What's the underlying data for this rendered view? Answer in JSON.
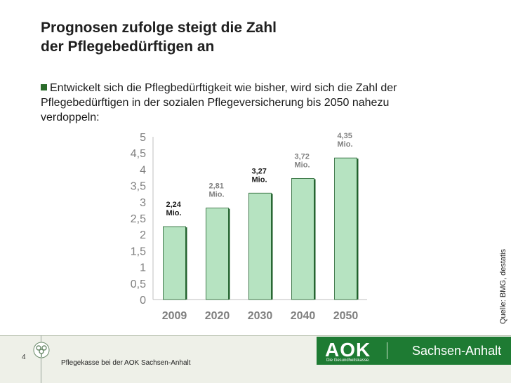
{
  "slide": {
    "title_line1": "Prognosen zufolge steigt die Zahl",
    "title_line2": "der Pflegebedürftigen an",
    "bullet": "Entwickelt sich die Pflegbedürftigkeit wie bisher, wird sich die Zahl der Pflegebedürftigen in der sozialen Pflegeversicherung bis 2050 nahezu verdoppeln:",
    "source": "Quelle: BMG, destatis",
    "page_number": "4",
    "footer_text": "Pflegekasse bei der AOK Sachsen-Anhalt"
  },
  "logo": {
    "letters": "AOK",
    "tagline": "Die Gesundheitskasse.",
    "region": "Sachsen-Anhalt",
    "color": "#1e7b33"
  },
  "chart_data": {
    "type": "bar",
    "categories": [
      "2009",
      "2020",
      "2030",
      "2040",
      "2050"
    ],
    "values": [
      2.24,
      2.81,
      3.27,
      3.72,
      4.35
    ],
    "data_labels": [
      [
        "2,24",
        "Mio."
      ],
      [
        "2,81",
        "Mio."
      ],
      [
        "3,27",
        "Mio."
      ],
      [
        "3,72",
        "Mio."
      ],
      [
        "4,35",
        "Mio."
      ]
    ],
    "label_colors": [
      "#1a1a1a",
      "#7f7f7f",
      "#1a1a1a",
      "#7f7f7f",
      "#7f7f7f"
    ],
    "ylim": [
      0,
      5
    ],
    "yticks": [
      "0",
      "0,5",
      "1",
      "1,5",
      "2",
      "2,5",
      "3",
      "3,5",
      "4",
      "4,5",
      "5"
    ],
    "bar_color": "#b6e3c1",
    "bar_edge": "#1e5e2a",
    "axis_label_color": "#7f7f7f",
    "grid": false,
    "legend": "none"
  }
}
